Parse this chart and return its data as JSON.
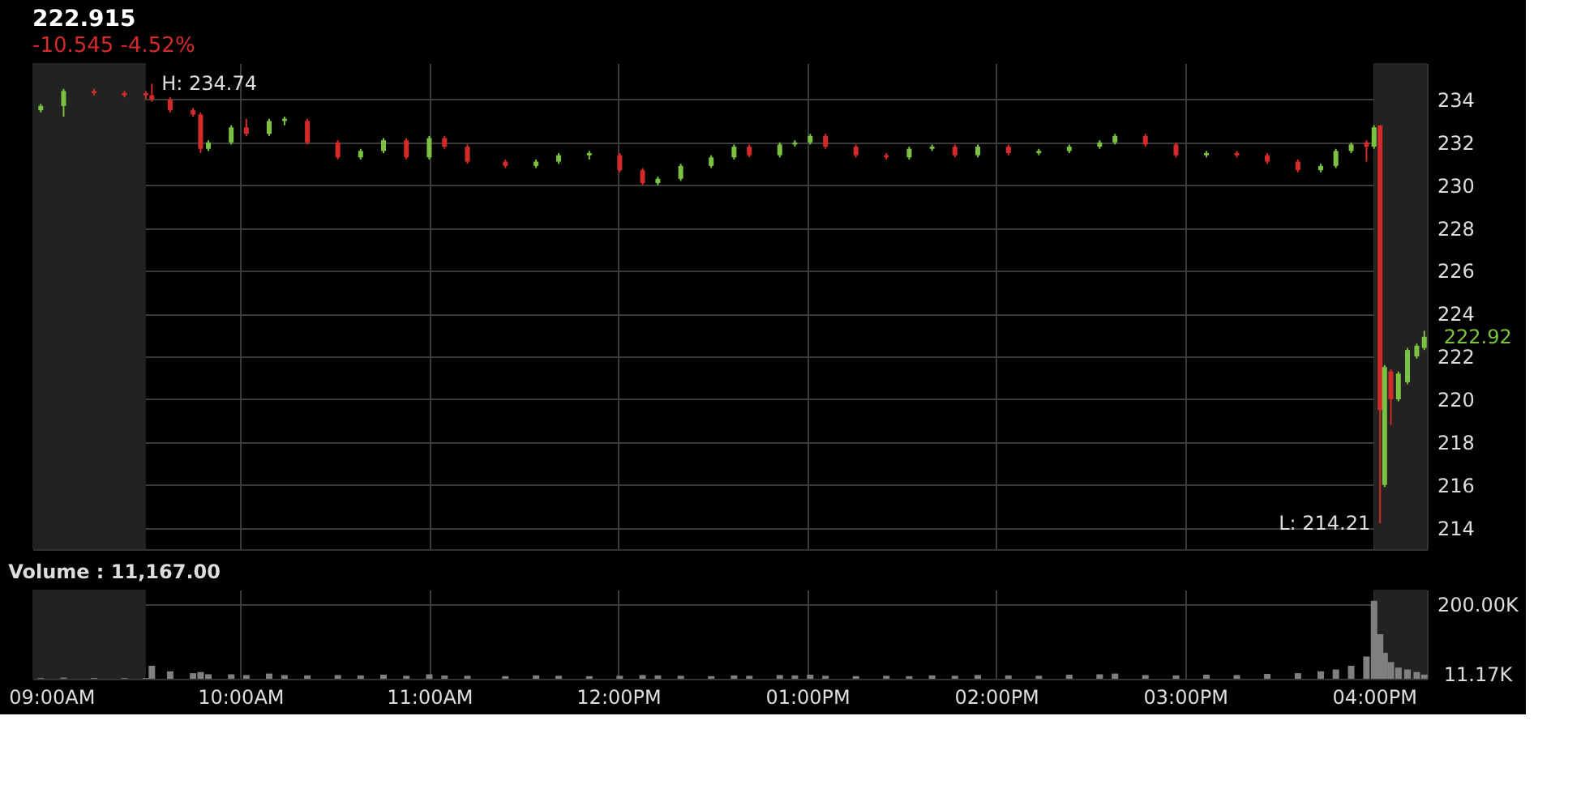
{
  "chart_data": [
    {
      "type": "candlestick",
      "title": "222.915",
      "subtitle": "-10.545 -4.52%",
      "x": [
        8.944,
        9.065,
        9.226,
        9.387,
        9.5,
        9.532,
        9.629,
        9.75,
        9.79,
        9.831,
        9.952,
        10.032,
        10.153,
        10.234,
        10.355,
        10.516,
        10.637,
        10.758,
        10.879,
        11.0,
        11.081,
        11.202,
        11.403,
        11.565,
        11.685,
        11.847,
        12.008,
        12.129,
        12.21,
        12.331,
        12.492,
        12.613,
        12.694,
        12.855,
        12.935,
        13.016,
        13.097,
        13.258,
        13.419,
        13.54,
        13.661,
        13.782,
        13.903,
        14.065,
        14.226,
        14.387,
        14.548,
        14.629,
        14.79,
        14.952,
        15.113,
        15.274,
        15.435,
        15.597,
        15.718,
        15.798,
        15.879,
        15.96,
        16.0,
        16.032,
        16.056,
        16.089,
        16.129,
        16.177,
        16.226,
        16.266
      ],
      "ohlc": [
        [
          233.5,
          233.8,
          233.4,
          233.7
        ],
        [
          233.7,
          234.5,
          233.2,
          234.4
        ],
        [
          234.4,
          234.5,
          234.2,
          234.3
        ],
        [
          234.3,
          234.4,
          234.1,
          234.2
        ],
        [
          234.3,
          234.4,
          234.0,
          234.2
        ],
        [
          234.2,
          234.74,
          233.9,
          234.0
        ],
        [
          234.0,
          234.1,
          233.4,
          233.5
        ],
        [
          233.5,
          233.6,
          233.2,
          233.3
        ],
        [
          233.3,
          233.4,
          231.5,
          231.7
        ],
        [
          231.7,
          232.1,
          231.6,
          232.0
        ],
        [
          232.0,
          232.8,
          231.9,
          232.7
        ],
        [
          232.7,
          233.1,
          232.3,
          232.4
        ],
        [
          232.4,
          233.1,
          232.3,
          233.0
        ],
        [
          233.0,
          233.2,
          232.8,
          233.1
        ],
        [
          233.0,
          233.1,
          231.9,
          232.0
        ],
        [
          232.0,
          232.1,
          231.2,
          231.3
        ],
        [
          231.3,
          231.7,
          231.2,
          231.6
        ],
        [
          231.6,
          232.2,
          231.5,
          232.1
        ],
        [
          232.1,
          232.2,
          231.2,
          231.3
        ],
        [
          231.3,
          232.3,
          231.2,
          232.2
        ],
        [
          232.2,
          232.3,
          231.7,
          231.8
        ],
        [
          231.8,
          231.9,
          231.0,
          231.1
        ],
        [
          231.1,
          231.2,
          230.8,
          230.9
        ],
        [
          230.9,
          231.2,
          230.8,
          231.1
        ],
        [
          231.1,
          231.5,
          231.0,
          231.4
        ],
        [
          231.4,
          231.6,
          231.2,
          231.5
        ],
        [
          231.4,
          231.5,
          230.6,
          230.7
        ],
        [
          230.7,
          230.8,
          230.0,
          230.1
        ],
        [
          230.1,
          230.4,
          230.0,
          230.3
        ],
        [
          230.3,
          231.0,
          230.2,
          230.9
        ],
        [
          230.9,
          231.4,
          230.8,
          231.3
        ],
        [
          231.3,
          231.9,
          231.2,
          231.8
        ],
        [
          231.8,
          231.9,
          231.3,
          231.4
        ],
        [
          231.4,
          232.0,
          231.3,
          231.9
        ],
        [
          231.9,
          232.1,
          231.8,
          232.0
        ],
        [
          232.0,
          232.4,
          231.9,
          232.3
        ],
        [
          232.3,
          232.4,
          231.7,
          231.8
        ],
        [
          231.8,
          231.9,
          231.3,
          231.4
        ],
        [
          231.4,
          231.5,
          231.2,
          231.3
        ],
        [
          231.3,
          231.8,
          231.2,
          231.7
        ],
        [
          231.7,
          231.9,
          231.6,
          231.8
        ],
        [
          231.8,
          231.9,
          231.3,
          231.4
        ],
        [
          231.4,
          231.9,
          231.3,
          231.8
        ],
        [
          231.8,
          231.9,
          231.4,
          231.5
        ],
        [
          231.5,
          231.7,
          231.4,
          231.6
        ],
        [
          231.6,
          231.9,
          231.5,
          231.8
        ],
        [
          231.8,
          232.1,
          231.7,
          232.0
        ],
        [
          232.0,
          232.4,
          231.9,
          232.3
        ],
        [
          232.3,
          232.4,
          231.8,
          231.9
        ],
        [
          231.9,
          232.0,
          231.3,
          231.4
        ],
        [
          231.4,
          231.6,
          231.3,
          231.5
        ],
        [
          231.5,
          231.6,
          231.3,
          231.4
        ],
        [
          231.4,
          231.5,
          231.0,
          231.1
        ],
        [
          231.1,
          231.2,
          230.6,
          230.7
        ],
        [
          230.7,
          231.0,
          230.6,
          230.9
        ],
        [
          230.9,
          231.7,
          230.8,
          231.6
        ],
        [
          231.6,
          232.0,
          231.5,
          231.9
        ],
        [
          232.0,
          232.1,
          231.1,
          231.8
        ],
        [
          231.8,
          232.8,
          231.7,
          232.7
        ],
        [
          232.8,
          232.8,
          214.21,
          219.5
        ],
        [
          216.0,
          221.6,
          215.9,
          221.5
        ],
        [
          221.3,
          221.4,
          218.8,
          220.0
        ],
        [
          220.0,
          221.3,
          219.9,
          221.2
        ],
        [
          220.8,
          222.4,
          220.7,
          222.3
        ],
        [
          222.0,
          222.6,
          221.9,
          222.5
        ],
        [
          222.4,
          223.2,
          222.3,
          222.92
        ]
      ],
      "xlim": [
        8.9,
        16.28
      ],
      "ylim": [
        213.0,
        235.7
      ],
      "yticks": [
        214,
        216,
        218,
        220,
        222,
        224,
        226,
        228,
        230,
        232,
        234
      ],
      "xticks": [
        {
          "value": 9,
          "label": null
        },
        {
          "value": 10,
          "label": null
        },
        {
          "value": 11,
          "label": null
        },
        {
          "value": 12,
          "label": null
        },
        {
          "value": 13,
          "label": null
        },
        {
          "value": 14,
          "label": null
        },
        {
          "value": 15,
          "label": null
        },
        {
          "value": 16,
          "label": null
        }
      ],
      "bands": [
        {
          "axis": "x",
          "from": 8.9,
          "to": 9.5,
          "label": null,
          "color": "#222222"
        },
        {
          "axis": "x",
          "from": 16.0,
          "to": 16.28,
          "label": null,
          "color": "#222222"
        }
      ],
      "annotations": [
        {
          "text": "H: 234.74",
          "x": 9.532,
          "y": 234.74
        },
        {
          "text": "L: 214.21",
          "x": 16.032,
          "y": 214.21
        },
        {
          "text": "222.92",
          "x": 16.266,
          "y": 222.92
        }
      ],
      "grid": true,
      "tick_labels": "y"
    },
    {
      "type": "bar",
      "title": "Volume : 11,167.00",
      "x": [
        8.944,
        9.065,
        9.226,
        9.387,
        9.5,
        9.532,
        9.629,
        9.75,
        9.79,
        9.831,
        9.952,
        10.032,
        10.153,
        10.234,
        10.355,
        10.516,
        10.637,
        10.758,
        10.879,
        11.0,
        11.081,
        11.202,
        11.403,
        11.565,
        11.685,
        11.847,
        12.008,
        12.129,
        12.21,
        12.331,
        12.492,
        12.613,
        12.694,
        12.855,
        12.935,
        13.016,
        13.097,
        13.258,
        13.419,
        13.54,
        13.661,
        13.782,
        13.903,
        14.065,
        14.226,
        14.387,
        14.548,
        14.629,
        14.79,
        14.952,
        15.113,
        15.274,
        15.435,
        15.597,
        15.718,
        15.798,
        15.879,
        15.96,
        16.0,
        16.032,
        16.056,
        16.089,
        16.129,
        16.177,
        16.226,
        16.266
      ],
      "series": [
        {
          "color": "#808080",
          "values": [
            2000,
            3000,
            2000,
            2000,
            2000,
            35000,
            20000,
            15000,
            18000,
            12000,
            12000,
            10000,
            14000,
            10000,
            9000,
            10000,
            9000,
            11000,
            8000,
            12000,
            9000,
            8000,
            7000,
            9000,
            8000,
            7000,
            8000,
            10000,
            9000,
            8000,
            7000,
            9000,
            8000,
            10000,
            9000,
            11000,
            8000,
            7000,
            8000,
            7000,
            9000,
            8000,
            10000,
            9000,
            8000,
            11000,
            12000,
            14000,
            10000,
            9000,
            11000,
            10000,
            13000,
            15000,
            20000,
            25000,
            35000,
            60000,
            210000,
            120000,
            70000,
            45000,
            30000,
            25000,
            18000,
            11170
          ]
        }
      ],
      "xlim": [
        8.9,
        16.28
      ],
      "ylim": [
        0,
        240000
      ],
      "yticks": [
        {
          "value": 200000,
          "label": "200.00K"
        }
      ],
      "xticks": [
        {
          "value": 9,
          "label": "09:00AM"
        },
        {
          "value": 10,
          "label": "10:00AM"
        },
        {
          "value": 11,
          "label": "11:00AM"
        },
        {
          "value": 12,
          "label": "12:00PM"
        },
        {
          "value": 13,
          "label": "01:00PM"
        },
        {
          "value": 14,
          "label": "02:00PM"
        },
        {
          "value": 15,
          "label": "03:00PM"
        },
        {
          "value": 16,
          "label": "04:00PM"
        }
      ],
      "bands": [
        {
          "axis": "x",
          "from": 8.9,
          "to": 9.5,
          "label": null,
          "color": "#222222"
        },
        {
          "axis": "x",
          "from": 16.0,
          "to": 16.28,
          "label": null,
          "color": "#222222"
        }
      ],
      "annotations": [
        {
          "text": "11.17K",
          "x": 16.266,
          "y": 11170
        }
      ],
      "grid": true
    }
  ]
}
